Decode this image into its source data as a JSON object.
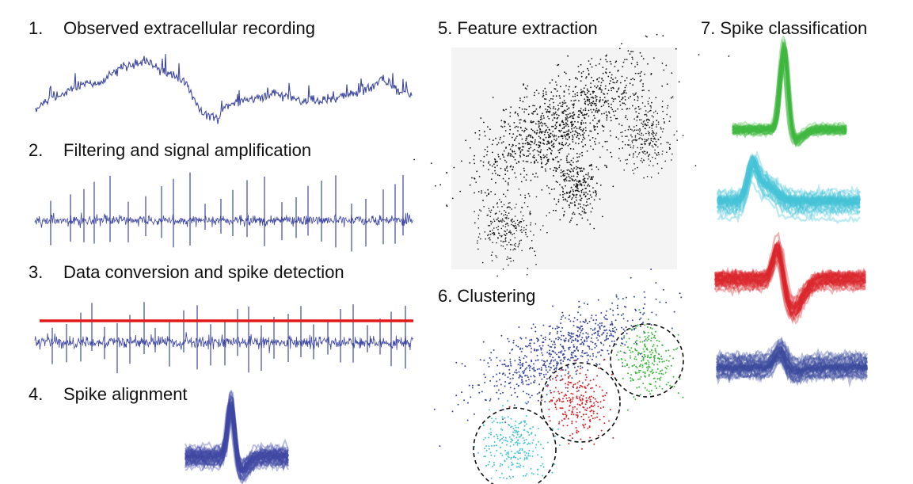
{
  "steps": [
    {
      "num": "1.",
      "label": "Observed extracellular recording"
    },
    {
      "num": "2.",
      "label": "Filtering and signal amplification"
    },
    {
      "num": "3.",
      "label": "Data conversion and spike detection"
    },
    {
      "num": "4.",
      "label": "Spike alignment"
    },
    {
      "num": "5.",
      "label": "Feature extraction"
    },
    {
      "num": "6.",
      "label": "Clustering"
    },
    {
      "num": "7.",
      "label": "Spike classification"
    }
  ],
  "colors": {
    "trace": "#3f48a3",
    "threshold": "#e31a1c",
    "feature_points": "#111111",
    "cluster_blue": "#3c4a9e",
    "cluster_red": "#d9262b",
    "cluster_green": "#3fb83f",
    "cluster_cyan": "#45c4d6",
    "circle": "#111111"
  },
  "classified_units": [
    "green",
    "cyan",
    "red",
    "blue"
  ]
}
